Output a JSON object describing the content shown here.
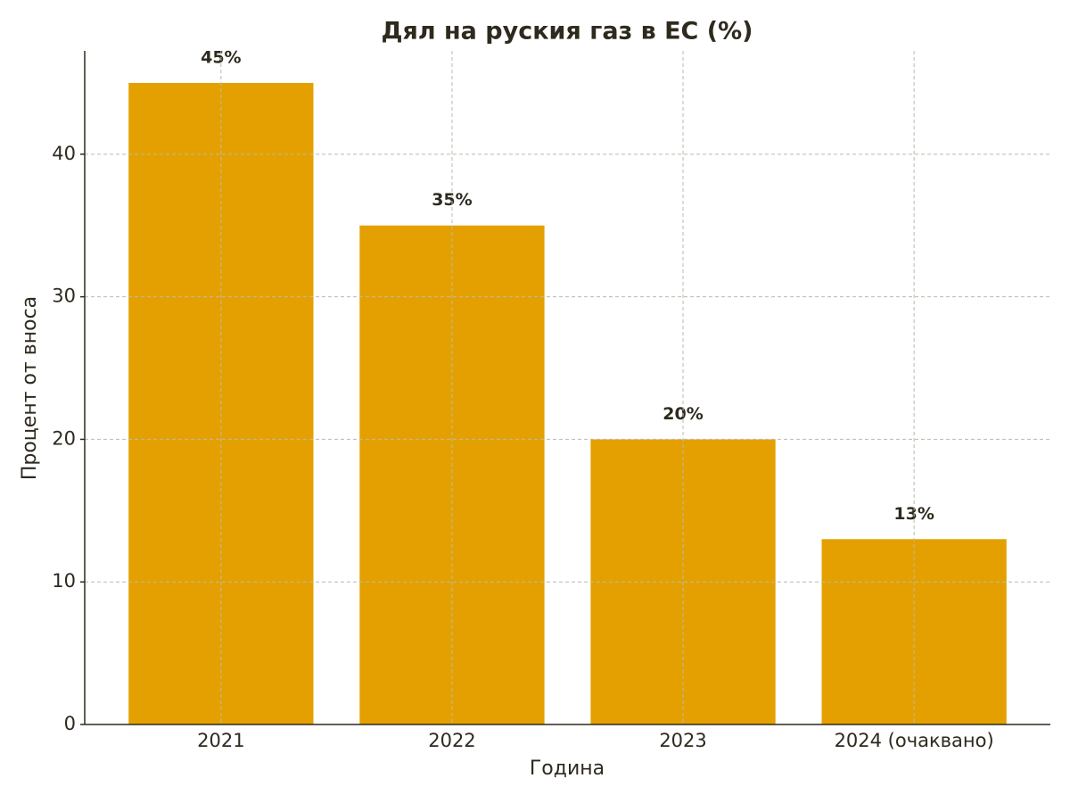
{
  "chart_data": {
    "type": "bar",
    "title": "Дял на руския газ в ЕС (%)",
    "x_label": "Година",
    "y_label": "Процент от вноса",
    "categories": [
      "2021",
      "2022",
      "2023",
      "2024 (очаквано)"
    ],
    "values": [
      45,
      35,
      20,
      13
    ],
    "value_labels": [
      "45%",
      "35%",
      "20%",
      "13%"
    ],
    "color": "#e3a000",
    "ylim": [
      0,
      47.25
    ],
    "yticks": [
      0,
      10,
      20,
      30,
      40
    ],
    "grid": true
  }
}
